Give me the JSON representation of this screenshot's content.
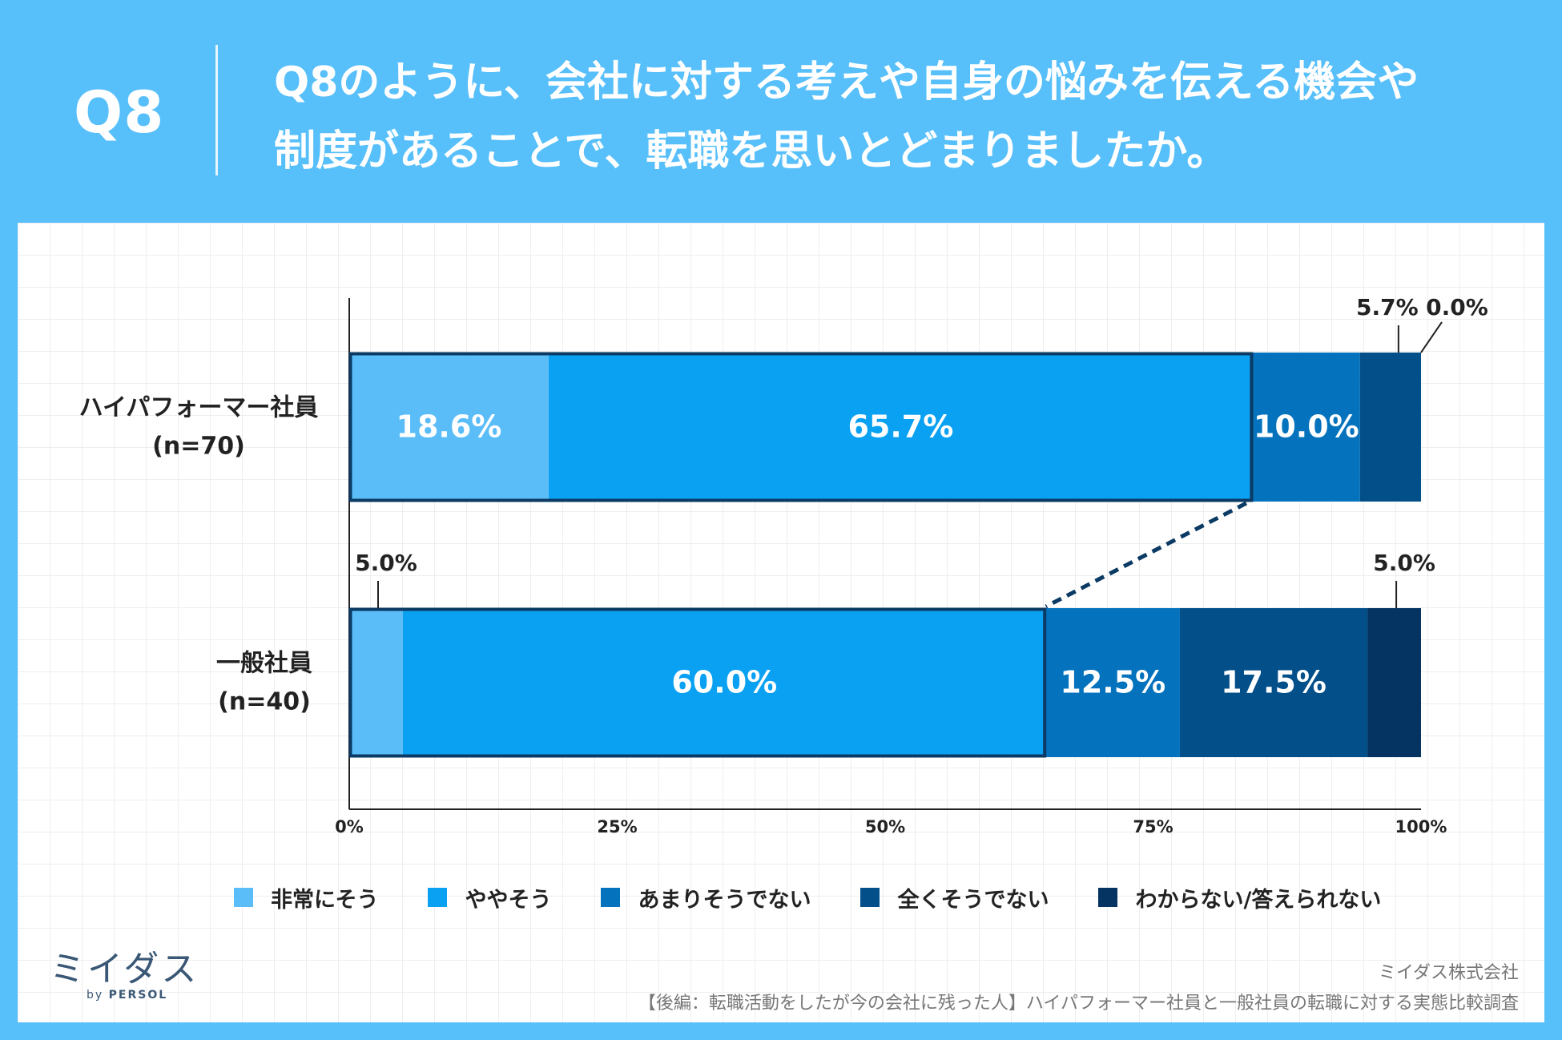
{
  "header": {
    "q_label": "Q8",
    "title_line1": "Q8のように、会社に対する考えや自身の悩みを伝える機会や",
    "title_line2": "制度があることで、転職を思いとどまりましたか。"
  },
  "chart_data": {
    "type": "bar",
    "orientation": "horizontal-stacked",
    "title": "Q8のように、会社に対する考えや自身の悩みを伝える機会や制度があることで、転職を思いとどまりましたか。",
    "categories": [
      {
        "name": "ハイパフォーマー社員",
        "n": "(n=70)"
      },
      {
        "name": "一般社員",
        "n": "(n=40)"
      }
    ],
    "series": [
      {
        "name": "非常にそう",
        "color": "#5bbdf8",
        "values": [
          18.6,
          5.0
        ],
        "labels": [
          "18.6%",
          "5.0%"
        ]
      },
      {
        "name": "ややそう",
        "color": "#0aa1f2",
        "values": [
          65.7,
          60.0
        ],
        "labels": [
          "65.7%",
          "60.0%"
        ]
      },
      {
        "name": "あまりそうでない",
        "color": "#0472bc",
        "values": [
          10.0,
          12.5
        ],
        "labels": [
          "10.0%",
          "12.5%"
        ]
      },
      {
        "name": "全くそうでない",
        "color": "#034f8a",
        "values": [
          5.7,
          17.5
        ],
        "labels": [
          "5.7%",
          "17.5%"
        ]
      },
      {
        "name": "わからない/答えられない",
        "color": "#053462",
        "values": [
          0.0,
          5.0
        ],
        "labels": [
          "0.0%",
          "5.0%"
        ]
      }
    ],
    "x_ticks": [
      "0%",
      "25%",
      "50%",
      "75%",
      "100%"
    ],
    "xlim": [
      0,
      100
    ],
    "legend_position": "bottom"
  },
  "footer": {
    "logo_text": "ミイダス",
    "logo_by": "by",
    "logo_brand": "PERSOL",
    "company": "ミイダス株式会社",
    "source": "【後編：転職活動をしたが今の会社に残った人】ハイパフォーマー社員と一般社員の転職に対する実態比較調査"
  }
}
